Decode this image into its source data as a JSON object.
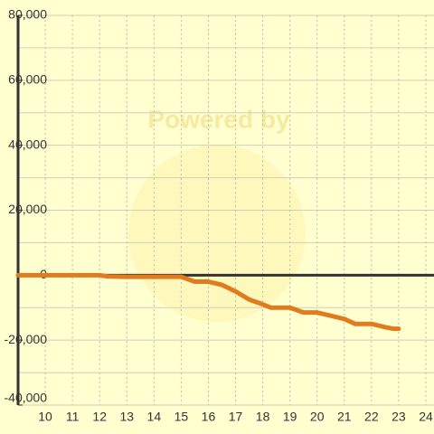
{
  "chart_data": {
    "type": "line",
    "watermark": "Powered by",
    "x": [
      9,
      10,
      11,
      12,
      12.3,
      13,
      14,
      15,
      15.5,
      16,
      16.5,
      17,
      17.5,
      18,
      18.3,
      19,
      19.5,
      20,
      20.5,
      21,
      21.4,
      22,
      22.5,
      22.8,
      23
    ],
    "series": [
      {
        "color": "#e07b20",
        "values": [
          0,
          0,
          0,
          0,
          -400,
          -500,
          -500,
          -500,
          -2000,
          -2000,
          -3000,
          -5000,
          -7500,
          -9000,
          -10000,
          -10000,
          -11500,
          -11500,
          -12500,
          -13500,
          -15000,
          -15000,
          -16000,
          -16500,
          -16500
        ]
      }
    ],
    "xlim": [
      9,
      24.3
    ],
    "ylim": [
      -40000,
      80000
    ],
    "xticks": [
      10,
      11,
      12,
      13,
      14,
      15,
      16,
      17,
      18,
      19,
      20,
      21,
      22,
      23,
      24
    ],
    "yticks": [
      {
        "value": -40000,
        "label": "-40,000"
      },
      {
        "value": -20000,
        "label": "-20,000"
      },
      0,
      {
        "value": 20000,
        "label": "20,000"
      },
      {
        "value": 40000,
        "label": "40,000"
      },
      {
        "value": 60000,
        "label": "60,000"
      },
      {
        "value": 80000,
        "label": "80,000"
      }
    ],
    "ygrid": [
      -30000,
      -10000,
      10000,
      30000,
      50000,
      70000
    ],
    "grid": true
  }
}
